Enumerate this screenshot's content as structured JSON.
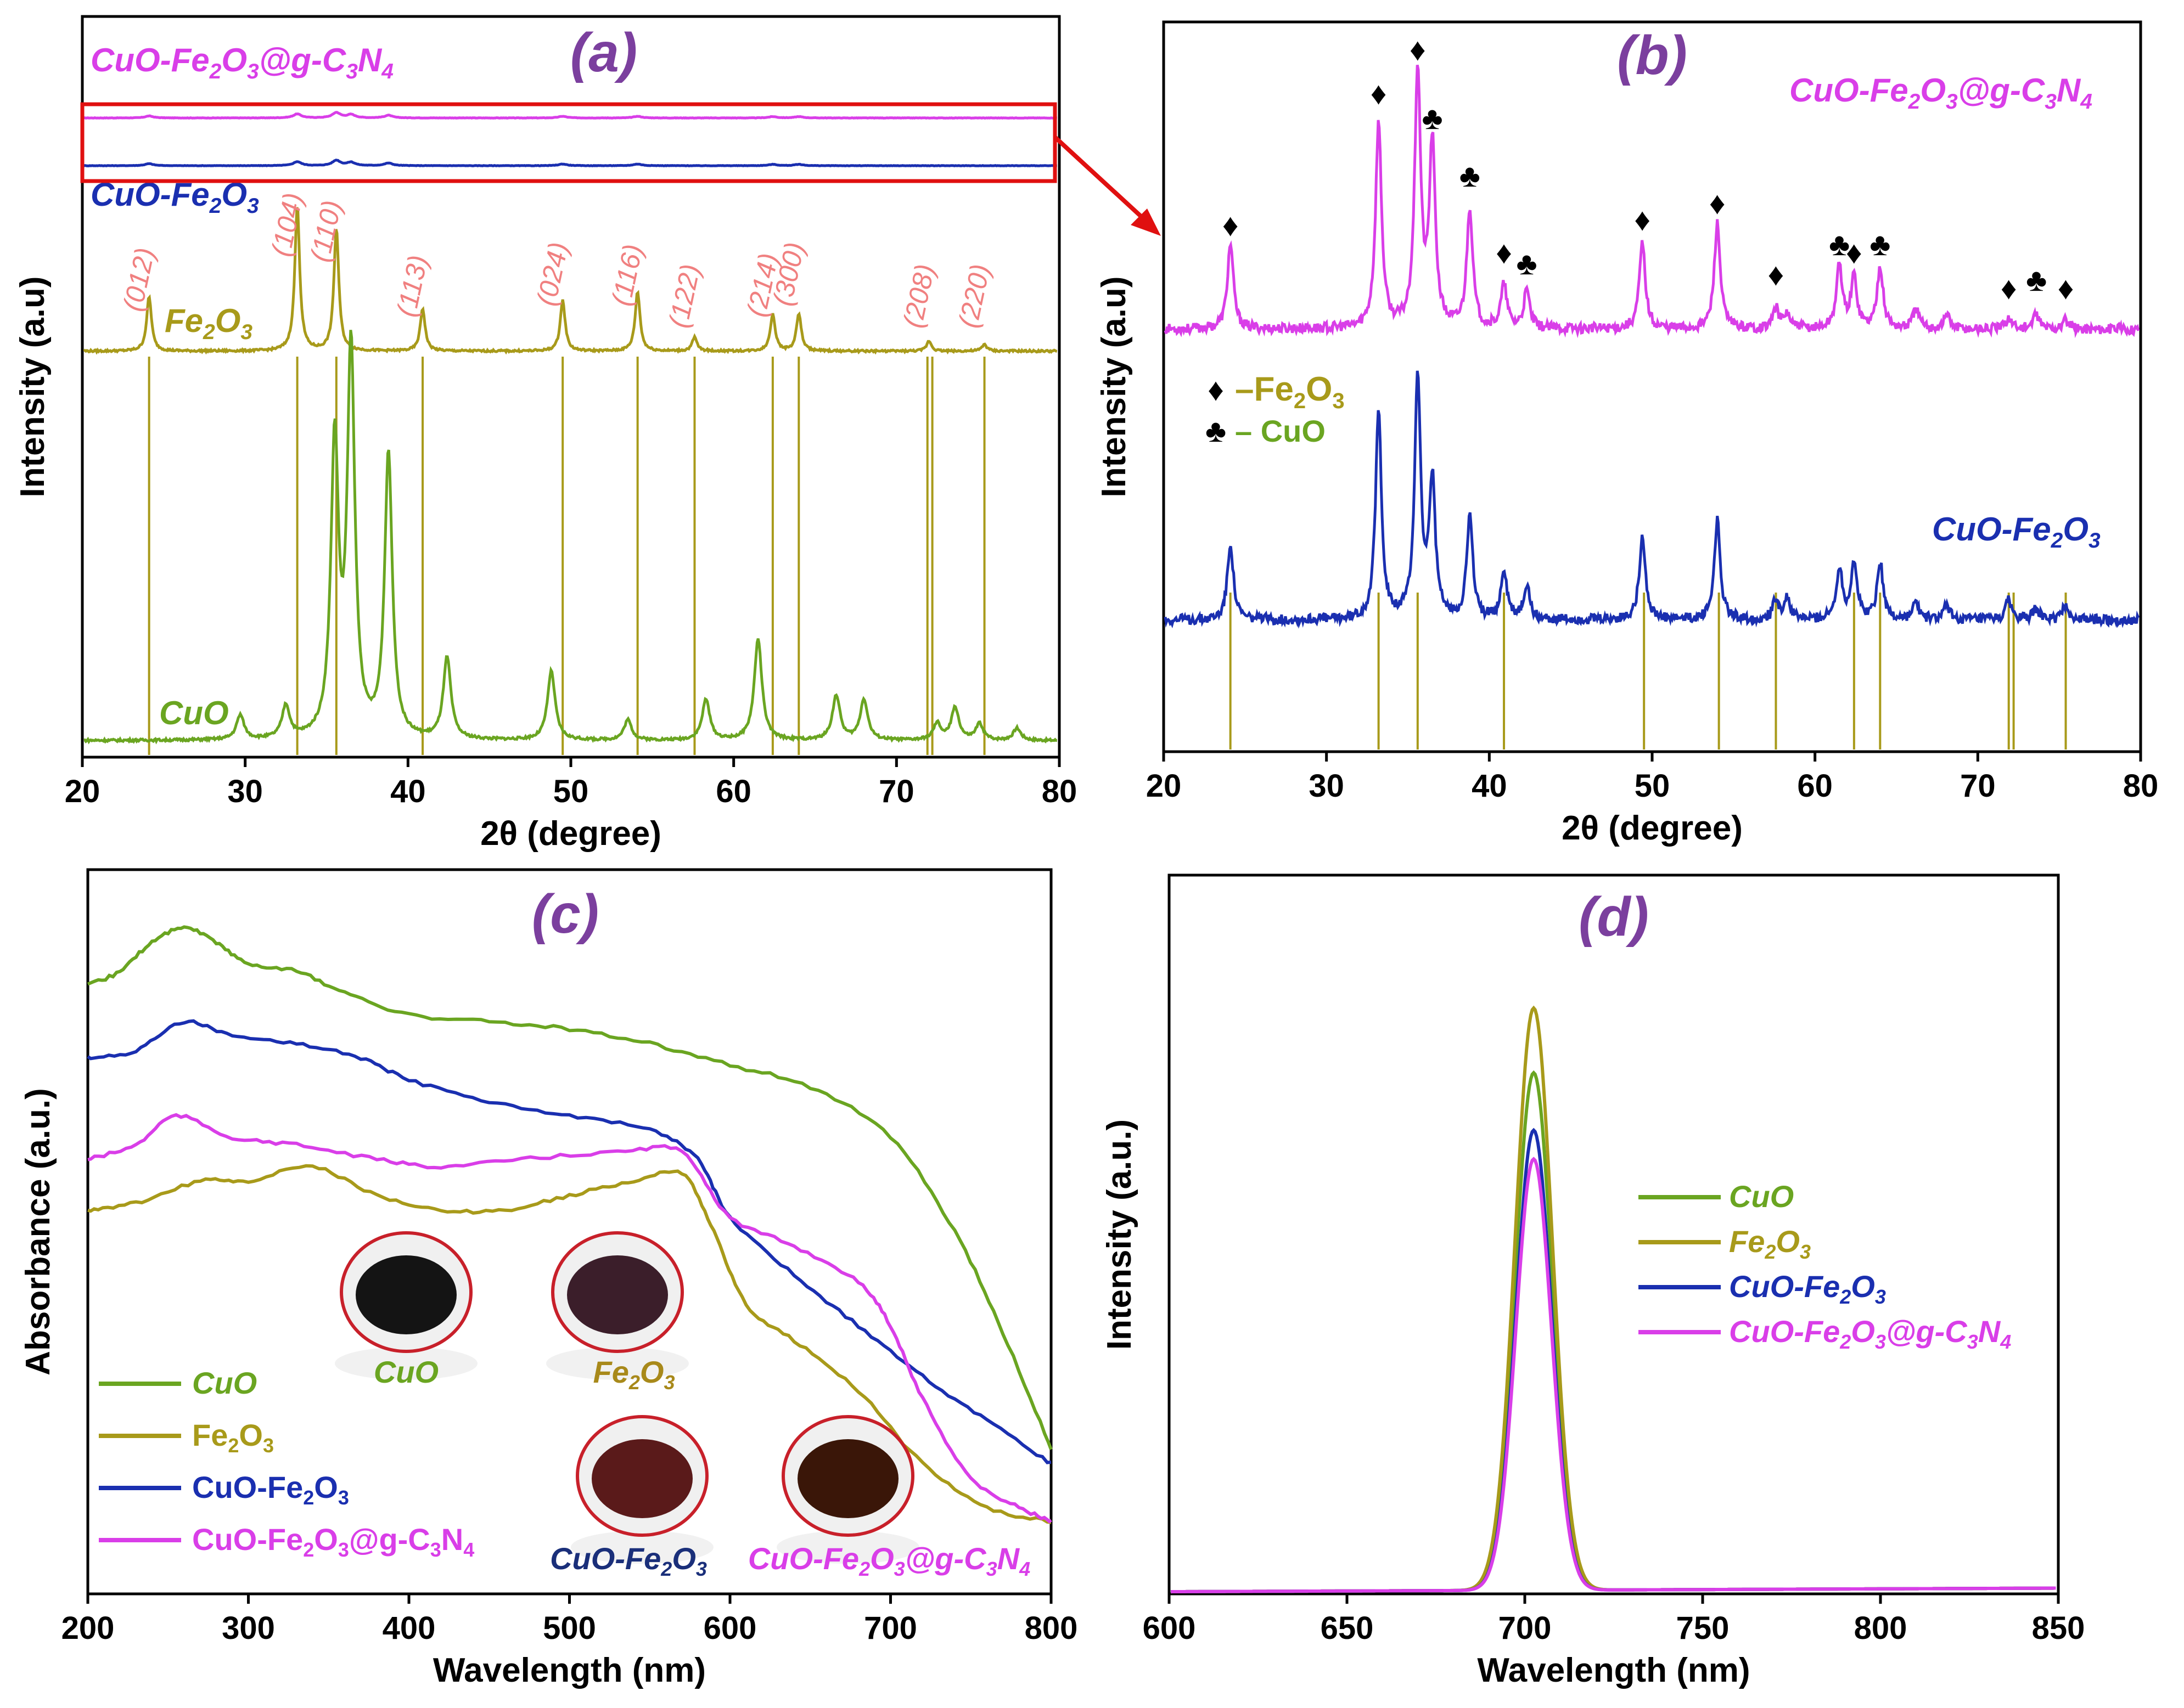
{
  "colors": {
    "cuo": "#6aa521",
    "fe2o3": "#a89a1a",
    "cuofe": "#1a2fb0",
    "composite": "#d93ee8",
    "ref_line": "#a89a1a",
    "panel_title": "#7b3f9e",
    "hkl": "#f08080",
    "marker_fe": "#f08080",
    "marker_cuo": "#b00000",
    "highlight_box": "#e01010"
  },
  "chart_data": [
    {
      "panel": "(a)",
      "type": "line",
      "title": "(a)",
      "xlabel": "2θ (degree)",
      "ylabel": "Intensity (a.u)",
      "xlim": [
        20,
        80
      ],
      "xticks": [
        20,
        30,
        40,
        50,
        60,
        70,
        80
      ],
      "series": [
        {
          "name": "CuO-Fe2O3@g-C3N4",
          "label_main": "CuO-Fe",
          "label_sub1": "2",
          "label_mid": "O",
          "label_sub2": "3",
          "label_tail": "@g-C",
          "label_sub3": "3",
          "label_tail2": "N",
          "label_sub4": "4",
          "color_key": "composite",
          "peaks": [
            [
              24.1,
              0.06
            ],
            [
              33.2,
              0.12
            ],
            [
              35.6,
              0.16
            ],
            [
              36.5,
              0.1
            ],
            [
              38.8,
              0.08
            ],
            [
              49.5,
              0.05
            ],
            [
              54.1,
              0.05
            ],
            [
              62.4,
              0.04
            ],
            [
              64.0,
              0.04
            ]
          ]
        },
        {
          "name": "CuO-Fe2O3",
          "label_main": "CuO-Fe",
          "label_sub1": "2",
          "label_mid": "O",
          "label_sub2": "3",
          "color_key": "cuofe",
          "peaks": [
            [
              24.1,
              0.06
            ],
            [
              33.2,
              0.12
            ],
            [
              35.6,
              0.16
            ],
            [
              36.5,
              0.1
            ],
            [
              38.8,
              0.08
            ],
            [
              49.5,
              0.05
            ],
            [
              54.1,
              0.05
            ],
            [
              62.4,
              0.04
            ],
            [
              64.0,
              0.04
            ]
          ]
        },
        {
          "name": "Fe2O3",
          "label_main": "Fe",
          "label_sub1": "2",
          "label_mid": "O",
          "label_sub2": "3",
          "color_key": "fe2o3",
          "peaks": [
            [
              24.1,
              0.32
            ],
            [
              33.2,
              0.85
            ],
            [
              35.6,
              0.72
            ],
            [
              40.9,
              0.25
            ],
            [
              49.5,
              0.3
            ],
            [
              54.1,
              0.35
            ],
            [
              57.6,
              0.08
            ],
            [
              62.4,
              0.22
            ],
            [
              64.0,
              0.22
            ],
            [
              72.0,
              0.06
            ],
            [
              75.4,
              0.04
            ]
          ]
        },
        {
          "name": "CuO",
          "label_main": "CuO",
          "color_key": "cuo",
          "peaks": [
            [
              29.7,
              0.06
            ],
            [
              32.5,
              0.08
            ],
            [
              35.5,
              0.72
            ],
            [
              36.5,
              0.95
            ],
            [
              38.8,
              0.7
            ],
            [
              42.4,
              0.2
            ],
            [
              48.8,
              0.17
            ],
            [
              53.5,
              0.05
            ],
            [
              58.3,
              0.1
            ],
            [
              61.5,
              0.25
            ],
            [
              66.3,
              0.11
            ],
            [
              68.0,
              0.1
            ],
            [
              72.5,
              0.04
            ],
            [
              73.6,
              0.08
            ],
            [
              75.1,
              0.04
            ],
            [
              77.4,
              0.03
            ]
          ]
        }
      ],
      "reference_lines": [
        24.1,
        33.2,
        35.6,
        40.9,
        49.5,
        54.1,
        57.6,
        62.4,
        64.0,
        71.9,
        72.2,
        75.4
      ],
      "hkl_labels": [
        {
          "x": 24.1,
          "text": "(012)"
        },
        {
          "x": 33.2,
          "text": "(104)"
        },
        {
          "x": 35.6,
          "text": "(110)"
        },
        {
          "x": 40.9,
          "text": "(113)"
        },
        {
          "x": 49.5,
          "text": "(024)"
        },
        {
          "x": 54.1,
          "text": "(116)"
        },
        {
          "x": 57.6,
          "text": "(122)"
        },
        {
          "x": 62.4,
          "text": "(214)"
        },
        {
          "x": 64.0,
          "text": "(300)"
        },
        {
          "x": 72.0,
          "text": "(208)"
        },
        {
          "x": 75.4,
          "text": "(220)"
        }
      ]
    },
    {
      "panel": "(b)",
      "type": "line",
      "title": "(b)",
      "xlabel": "2θ (degree)",
      "ylabel": "Intensity (a.u)",
      "xlim": [
        20,
        80
      ],
      "xticks": [
        20,
        30,
        40,
        50,
        60,
        70,
        80
      ],
      "series": [
        {
          "name": "CuO-Fe2O3@g-C3N4",
          "label_main": "CuO-Fe",
          "label_sub1": "2",
          "label_mid": "O",
          "label_sub2": "3",
          "label_tail": "@g-C",
          "label_sub3": "3",
          "label_tail2": "N",
          "label_sub4": "4",
          "color_key": "composite",
          "peaks": [
            [
              24.1,
              0.3
            ],
            [
              33.2,
              0.72
            ],
            [
              35.6,
              0.9
            ],
            [
              36.5,
              0.64
            ],
            [
              38.8,
              0.42
            ],
            [
              40.9,
              0.15
            ],
            [
              42.3,
              0.13
            ],
            [
              49.4,
              0.3
            ],
            [
              54.0,
              0.37
            ],
            [
              57.6,
              0.07
            ],
            [
              58.3,
              0.05
            ],
            [
              61.5,
              0.22
            ],
            [
              62.4,
              0.18
            ],
            [
              64.0,
              0.22
            ],
            [
              66.2,
              0.07
            ],
            [
              68.1,
              0.05
            ],
            [
              71.9,
              0.04
            ],
            [
              73.6,
              0.05
            ],
            [
              75.4,
              0.03
            ]
          ]
        },
        {
          "name": "CuO-Fe2O3",
          "label_main": "CuO-Fe",
          "label_sub1": "2",
          "label_mid": "O",
          "label_sub2": "3",
          "color_key": "cuofe",
          "peaks": [
            [
              24.1,
              0.27
            ],
            [
              33.2,
              0.73
            ],
            [
              35.6,
              0.85
            ],
            [
              36.5,
              0.48
            ],
            [
              38.8,
              0.36
            ],
            [
              40.9,
              0.17
            ],
            [
              42.3,
              0.12
            ],
            [
              49.4,
              0.3
            ],
            [
              54.0,
              0.35
            ],
            [
              57.6,
              0.07
            ],
            [
              58.3,
              0.07
            ],
            [
              61.5,
              0.18
            ],
            [
              62.4,
              0.2
            ],
            [
              64.0,
              0.2
            ],
            [
              66.2,
              0.06
            ],
            [
              68.1,
              0.05
            ],
            [
              71.9,
              0.07
            ],
            [
              73.6,
              0.04
            ],
            [
              75.4,
              0.05
            ]
          ]
        }
      ],
      "reference_lines": [
        24.1,
        33.2,
        35.6,
        40.9,
        49.5,
        54.1,
        57.6,
        62.4,
        64.0,
        71.9,
        72.2,
        75.4
      ],
      "markers": [
        {
          "x": 24.1,
          "kind": "fe"
        },
        {
          "x": 33.2,
          "kind": "fe"
        },
        {
          "x": 35.6,
          "kind": "fe"
        },
        {
          "x": 36.5,
          "kind": "cuo"
        },
        {
          "x": 38.8,
          "kind": "cuo"
        },
        {
          "x": 40.9,
          "kind": "fe"
        },
        {
          "x": 42.3,
          "kind": "cuo"
        },
        {
          "x": 49.4,
          "kind": "fe"
        },
        {
          "x": 54.0,
          "kind": "fe"
        },
        {
          "x": 57.6,
          "kind": "fe"
        },
        {
          "x": 61.5,
          "kind": "cuo"
        },
        {
          "x": 62.4,
          "kind": "fe"
        },
        {
          "x": 64.0,
          "kind": "cuo"
        },
        {
          "x": 71.9,
          "kind": "fe"
        },
        {
          "x": 73.6,
          "kind": "cuo"
        },
        {
          "x": 75.4,
          "kind": "fe"
        }
      ],
      "marker_legend": {
        "fe_symbol": "♦",
        "fe_text_a": "–Fe",
        "fe_sub1": "2",
        "fe_text_b": "O",
        "fe_sub2": "3",
        "cuo_symbol": "♣",
        "cuo_text": "– CuO"
      }
    },
    {
      "panel": "(c)",
      "type": "line",
      "title": "(c)",
      "xlabel": "Wavelength (nm)",
      "ylabel": "Absorbance (a.u.)",
      "xlim": [
        200,
        800
      ],
      "ylim": [
        0,
        1
      ],
      "xticks": [
        200,
        300,
        400,
        500,
        600,
        700,
        800
      ],
      "series": [
        {
          "name": "CuO",
          "color_key": "cuo",
          "x": [
            200,
            220,
            240,
            260,
            280,
            300,
            330,
            360,
            400,
            450,
            500,
            550,
            600,
            650,
            700,
            740,
            770,
            800
          ],
          "y": [
            0.84,
            0.86,
            0.9,
            0.92,
            0.9,
            0.87,
            0.86,
            0.83,
            0.8,
            0.79,
            0.78,
            0.76,
            0.73,
            0.7,
            0.63,
            0.5,
            0.36,
            0.2
          ]
        },
        {
          "name": "Fe2O3",
          "color_key": "fe2o3",
          "x": [
            200,
            230,
            270,
            300,
            340,
            380,
            420,
            460,
            500,
            540,
            570,
            590,
            610,
            640,
            680,
            720,
            760,
            800
          ],
          "y": [
            0.53,
            0.54,
            0.57,
            0.57,
            0.59,
            0.55,
            0.53,
            0.53,
            0.55,
            0.57,
            0.58,
            0.5,
            0.4,
            0.35,
            0.28,
            0.18,
            0.12,
            0.1
          ]
        },
        {
          "name": "CuO-Fe2O3",
          "color_key": "cuofe",
          "x": [
            200,
            230,
            260,
            290,
            330,
            370,
            400,
            450,
            500,
            550,
            580,
            600,
            640,
            680,
            720,
            760,
            800
          ],
          "y": [
            0.74,
            0.75,
            0.79,
            0.77,
            0.76,
            0.74,
            0.71,
            0.68,
            0.66,
            0.64,
            0.6,
            0.52,
            0.44,
            0.37,
            0.3,
            0.24,
            0.18
          ]
        },
        {
          "name": "CuO-Fe2O3@g-C3N4",
          "color_key": "composite",
          "x": [
            200,
            230,
            255,
            290,
            330,
            380,
            420,
            470,
            530,
            570,
            600,
            640,
            680,
            700,
            720,
            750,
            780,
            800
          ],
          "y": [
            0.6,
            0.62,
            0.66,
            0.63,
            0.62,
            0.6,
            0.59,
            0.6,
            0.61,
            0.61,
            0.52,
            0.48,
            0.43,
            0.37,
            0.27,
            0.16,
            0.12,
            0.1
          ]
        }
      ],
      "legend": [
        {
          "color_key": "cuo",
          "main": "CuO",
          "italic": true
        },
        {
          "color_key": "fe2o3",
          "main": "Fe",
          "sub1": "2",
          "mid": "O",
          "sub2": "3",
          "italic": false
        },
        {
          "color_key": "cuofe",
          "main": "CuO-Fe",
          "sub1": "2",
          "mid": "O",
          "sub2": "3",
          "italic": false
        },
        {
          "color_key": "composite",
          "main": "CuO-Fe",
          "sub1": "2",
          "mid": "O",
          "sub2": "3",
          "tail": "@g-C",
          "sub3": "3",
          "tail2": "N",
          "sub4": "4",
          "italic": false
        }
      ],
      "photos": [
        {
          "name": "CuO",
          "main": "CuO",
          "fill": "#141414",
          "caption_color": "#6aa521"
        },
        {
          "name": "Fe2O3",
          "main": "Fe",
          "sub1": "2",
          "mid": "O",
          "sub2": "3",
          "fill": "#3b1e2a",
          "caption_color": "#a8891a"
        },
        {
          "name": "CuO-Fe2O3",
          "main": "CuO-Fe",
          "sub1": "2",
          "mid": "O",
          "sub2": "3",
          "fill": "#5a1a1a",
          "caption_color": "#1a2f7a"
        },
        {
          "name": "CuO-Fe2O3@g-C3N4",
          "main": "CuO-Fe",
          "sub1": "2",
          "mid": "O",
          "sub2": "3",
          "tail": "@g-C",
          "sub3": "3",
          "tail2": "N",
          "sub4": "4",
          "fill": "#3a1608",
          "caption_color": "#d93ee8"
        }
      ]
    },
    {
      "panel": "(d)",
      "type": "line",
      "title": "(d)",
      "xlabel": "Wavelength (nm)",
      "ylabel": "Intensity (a.u.)",
      "xlim": [
        600,
        850
      ],
      "ylim": [
        0,
        1
      ],
      "xticks": [
        600,
        650,
        700,
        750,
        800,
        850
      ],
      "series": [
        {
          "name": "CuO",
          "color_key": "cuo",
          "center": 702.5,
          "peak": 0.72,
          "sigma": 5.2
        },
        {
          "name": "Fe2O3",
          "color_key": "fe2o3",
          "center": 702.5,
          "peak": 0.81,
          "sigma": 5.2
        },
        {
          "name": "CuO-Fe2O3",
          "color_key": "cuofe",
          "center": 702.5,
          "peak": 0.64,
          "sigma": 5.0
        },
        {
          "name": "CuO-Fe2O3@g-C3N4",
          "color_key": "composite",
          "center": 702.5,
          "peak": 0.6,
          "sigma": 5.0
        }
      ],
      "legend": [
        {
          "color_key": "cuo",
          "main": "CuO"
        },
        {
          "color_key": "fe2o3",
          "main": "Fe",
          "sub1": "2",
          "mid": "O",
          "sub2": "3"
        },
        {
          "color_key": "cuofe",
          "main": "CuO-Fe",
          "sub1": "2",
          "mid": "O",
          "sub2": "3"
        },
        {
          "color_key": "composite",
          "main": "CuO-Fe",
          "sub1": "2",
          "mid": "O",
          "sub2": "3",
          "tail": "@g-C",
          "sub3": "3",
          "tail2": "N",
          "sub4": "4"
        }
      ]
    }
  ]
}
